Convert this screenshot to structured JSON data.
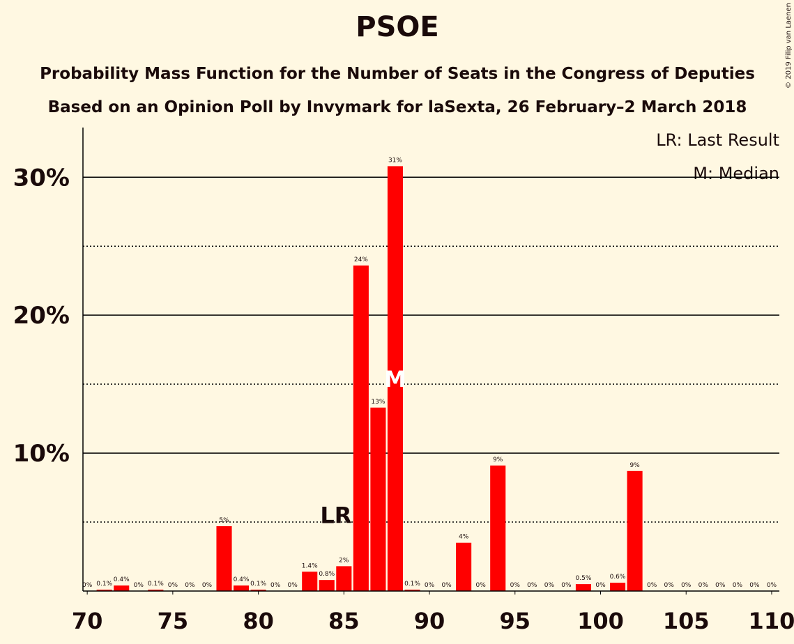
{
  "chart_data": {
    "type": "bar",
    "title": "PSOE",
    "subtitle": "Probability Mass Function for the Number of Seats in the Congress of Deputies",
    "subtitle2": "Based on an Opinion Poll by Invymark for laSexta, 26 February–2 March 2018",
    "credit": "© 2019 Filip van Laenen",
    "legend": [
      "LR: Last Result",
      "M: Median"
    ],
    "annotations": [
      {
        "label": "LR",
        "x": 85
      },
      {
        "label": "M",
        "x": 88
      }
    ],
    "color": "#ff0000",
    "x": [
      70,
      71,
      72,
      73,
      74,
      75,
      76,
      77,
      78,
      79,
      80,
      81,
      82,
      83,
      84,
      85,
      86,
      87,
      88,
      89,
      90,
      91,
      92,
      93,
      94,
      95,
      96,
      97,
      98,
      99,
      100,
      101,
      102,
      103,
      104,
      105,
      106,
      107,
      108,
      109,
      110
    ],
    "values": [
      0,
      0.1,
      0.4,
      0,
      0.1,
      0,
      0,
      0,
      4.7,
      0.4,
      0.1,
      0,
      0,
      1.4,
      0.8,
      1.8,
      23.6,
      13.3,
      30.8,
      0.1,
      0,
      0,
      3.5,
      0,
      9.1,
      0,
      0,
      0,
      0,
      0.5,
      0,
      0.6,
      8.7,
      0,
      0,
      0,
      0,
      0,
      0,
      0,
      0
    ],
    "value_labels": [
      "0%",
      "0.1%",
      "0.4%",
      "0%",
      "0.1%",
      "0%",
      "0%",
      "0%",
      "5%",
      "0.4%",
      "0.1%",
      "0%",
      "0%",
      "1.4%",
      "0.8%",
      "2%",
      "24%",
      "13%",
      "31%",
      "0.1%",
      "0%",
      "0%",
      "4%",
      "0%",
      "9%",
      "0%",
      "0%",
      "0%",
      "0%",
      "0.5%",
      "0%",
      "0.6%",
      "9%",
      "0%",
      "0%",
      "0%",
      "0%",
      "0%",
      "0%",
      "0%",
      "0%"
    ],
    "xlim": [
      69.75,
      110.45
    ],
    "xticks": [
      70,
      75,
      80,
      85,
      90,
      95,
      100,
      105,
      110
    ],
    "ylim": [
      0,
      33.6
    ],
    "yticks": [
      {
        "value": 10,
        "label": "10%"
      },
      {
        "value": 20,
        "label": "20%"
      },
      {
        "value": 30,
        "label": "30%"
      }
    ],
    "minor_yticks": [
      5,
      15,
      25
    ],
    "grid": true
  }
}
